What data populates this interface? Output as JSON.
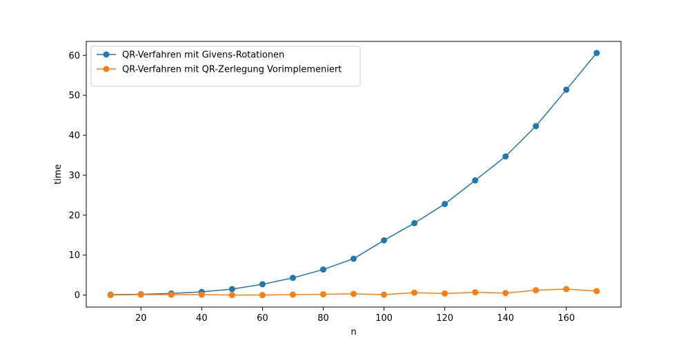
{
  "chart_data": {
    "type": "line",
    "title": "",
    "xlabel": "n",
    "ylabel": "time",
    "xlim": [
      2,
      178
    ],
    "ylim": [
      -3.0,
      63.5
    ],
    "xticks": [
      20,
      40,
      60,
      80,
      100,
      120,
      140,
      160
    ],
    "yticks": [
      0,
      10,
      20,
      30,
      40,
      50,
      60
    ],
    "grid": false,
    "legend_position": "top-left",
    "x": [
      10,
      20,
      30,
      40,
      50,
      60,
      70,
      80,
      90,
      100,
      110,
      120,
      130,
      140,
      150,
      160,
      170
    ],
    "series": [
      {
        "name": "QR-Verfahren mit Givens-Rotationen",
        "color": "#1f77b4",
        "marker": "circle",
        "values": [
          0.1,
          0.2,
          0.4,
          0.8,
          1.5,
          2.7,
          4.3,
          6.4,
          9.1,
          13.7,
          18.0,
          22.8,
          28.7,
          34.7,
          42.3,
          51.4,
          60.6
        ]
      },
      {
        "name": "QR-Verfahren mit QR-Zerlegung Vorimplemeniert",
        "color": "#ff7f0e",
        "marker": "circle",
        "values": [
          0.0,
          0.1,
          0.1,
          0.1,
          0.0,
          0.0,
          0.1,
          0.2,
          0.3,
          0.1,
          0.6,
          0.4,
          0.7,
          0.5,
          1.2,
          1.5,
          1.0
        ]
      }
    ]
  }
}
